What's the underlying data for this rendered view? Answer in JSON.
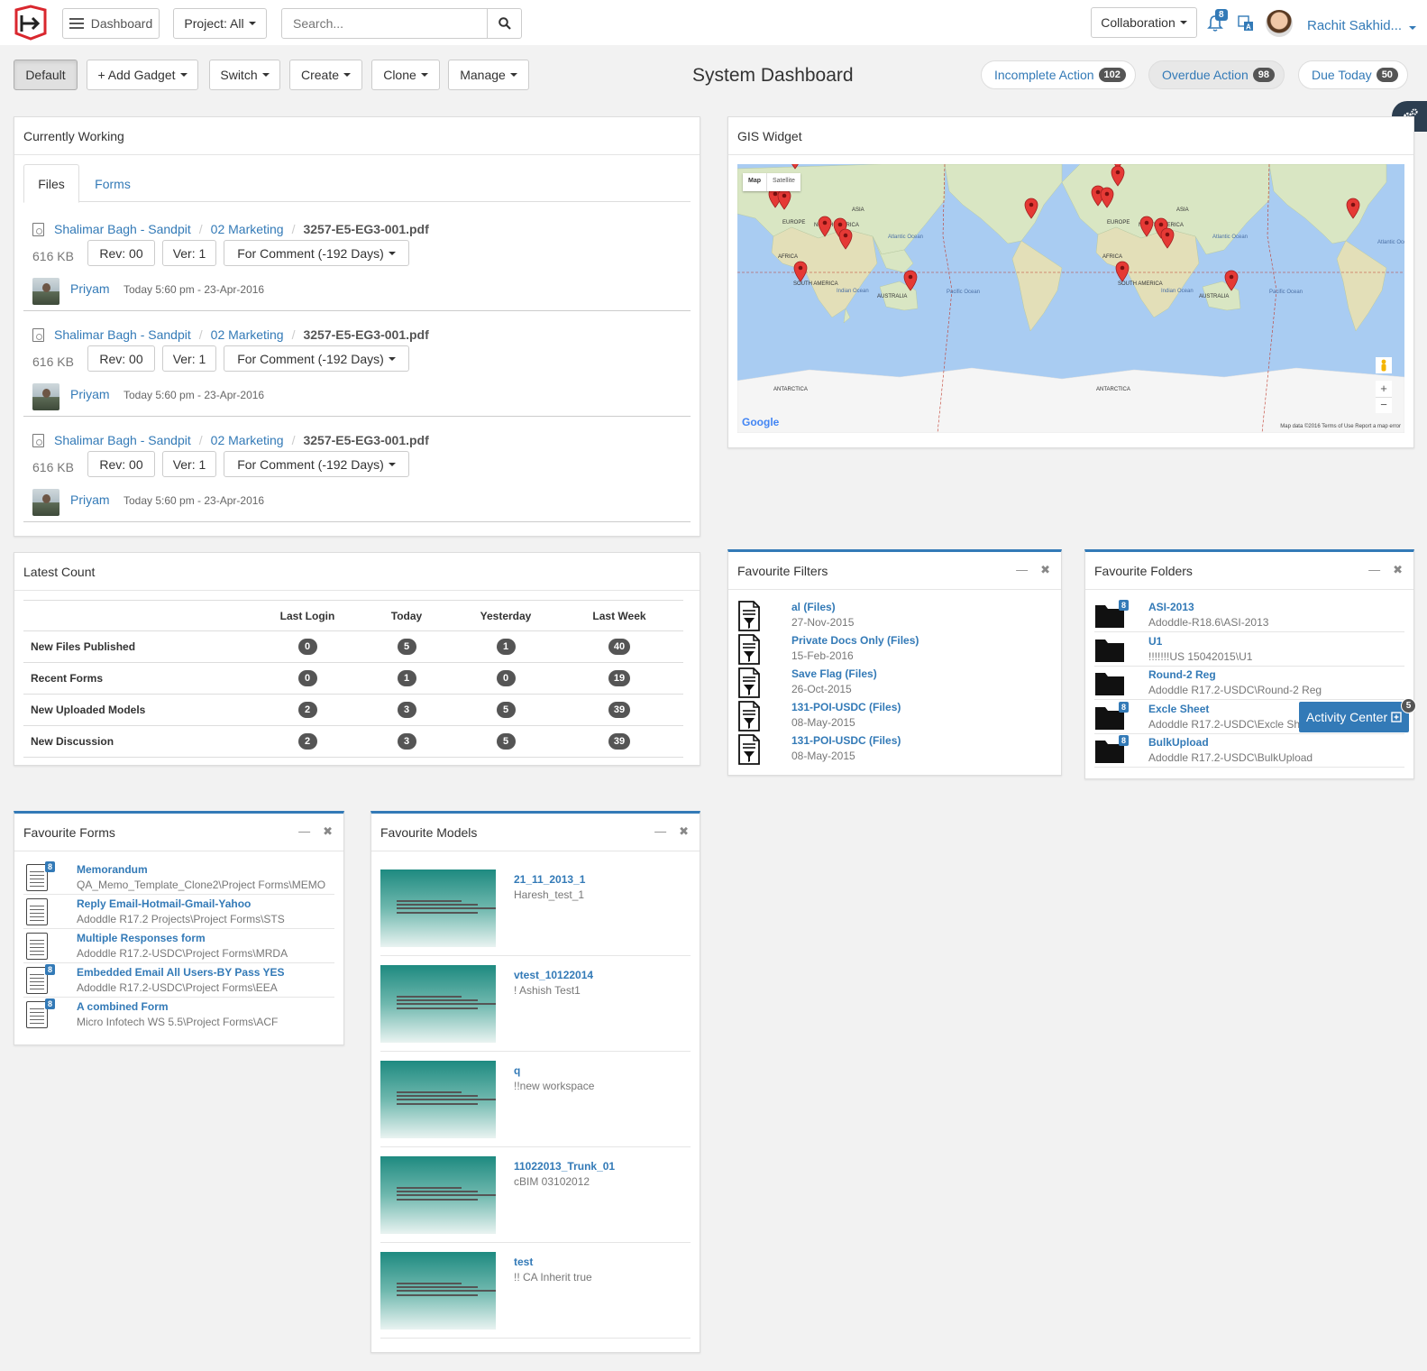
{
  "topnav": {
    "dashboard_label": "Dashboard",
    "project_label": "Project: All",
    "search_placeholder": "Search...",
    "collaboration_label": "Collaboration",
    "notification_count": "8",
    "user_name": "Rachit Sakhid..."
  },
  "toolbar": {
    "default_label": "Default",
    "add_gadget_label": "+ Add Gadget",
    "switch_label": "Switch",
    "create_label": "Create",
    "clone_label": "Clone",
    "manage_label": "Manage",
    "page_title": "System Dashboard",
    "incomplete_label": "Incomplete Action",
    "incomplete_count": "102",
    "overdue_label": "Overdue Action",
    "overdue_count": "98",
    "due_today_label": "Due Today",
    "due_today_count": "50"
  },
  "currently_working": {
    "title": "Currently Working",
    "tabs": [
      "Files",
      "Forms"
    ],
    "files": [
      {
        "project": "Shalimar Bagh - Sandpit",
        "folder": "02 Marketing",
        "name": "3257-E5-EG3-001.pdf",
        "size": "616 KB",
        "rev": "Rev: 00",
        "ver": "Ver: 1",
        "status": "For Comment (-192 Days)",
        "user": "Priyam",
        "time": "Today 5:60 pm - 23-Apr-2016"
      },
      {
        "project": "Shalimar Bagh - Sandpit",
        "folder": "02 Marketing",
        "name": "3257-E5-EG3-001.pdf",
        "size": "616 KB",
        "rev": "Rev: 00",
        "ver": "Ver: 1",
        "status": "For Comment (-192 Days)",
        "user": "Priyam",
        "time": "Today 5:60 pm - 23-Apr-2016"
      },
      {
        "project": "Shalimar Bagh - Sandpit",
        "folder": "02 Marketing",
        "name": "3257-E5-EG3-001.pdf",
        "size": "616 KB",
        "rev": "Rev: 00",
        "ver": "Ver: 1",
        "status": "For Comment (-192 Days)",
        "user": "Priyam",
        "time": "Today 5:60 pm - 23-Apr-2016"
      }
    ]
  },
  "gis": {
    "title": "GIS Widget",
    "map_tab": "Map",
    "satellite_tab": "Satellite",
    "google_label": "Google",
    "attribution": "Map data ©2016   Terms of Use   Report a map error",
    "labels": [
      "EUROPE",
      "ASIA",
      "AFRICA",
      "AUSTRALIA",
      "NORTH AMERICA",
      "SOUTH AMERICA",
      "ANTARCTICA",
      "Indian Ocean",
      "Pacific Ocean",
      "Atlantic Ocean",
      "EUROPE",
      "ASIA",
      "AFRICA",
      "AUSTRALIA",
      "NORTH AMERICA",
      "SOUTH AMERICA",
      "ANTARCTICA",
      "Indian Ocean",
      "Pacific Ocean",
      "Atlantic Ocean",
      "Atlantic Ocean"
    ],
    "zoom_in": "+",
    "zoom_out": "−"
  },
  "latest_count": {
    "title": "Latest Count",
    "columns": [
      "",
      "Last Login",
      "Today",
      "Yesterday",
      "Last Week"
    ],
    "rows": [
      {
        "label": "New Files Published",
        "values": [
          "0",
          "5",
          "1",
          "40"
        ]
      },
      {
        "label": "Recent Forms",
        "values": [
          "0",
          "1",
          "0",
          "19"
        ]
      },
      {
        "label": "New Uploaded Models",
        "values": [
          "2",
          "3",
          "5",
          "39"
        ]
      },
      {
        "label": "New Discussion",
        "values": [
          "2",
          "3",
          "5",
          "39"
        ]
      }
    ]
  },
  "favourite_filters": {
    "title": "Favourite Filters",
    "items": [
      {
        "name": "al (Files)",
        "date": "27-Nov-2015"
      },
      {
        "name": "Private Docs Only (Files)",
        "date": "15-Feb-2016"
      },
      {
        "name": "Save Flag (Files)",
        "date": "26-Oct-2015"
      },
      {
        "name": "131-POI-USDC (Files)",
        "date": "08-May-2015"
      },
      {
        "name": "131-POI-USDC (Files)",
        "date": "08-May-2015"
      }
    ]
  },
  "favourite_folders": {
    "title": "Favourite Folders",
    "items": [
      {
        "name": "ASI-2013",
        "path": "Adoddle-R18.6\\ASI-2013",
        "badge": "8"
      },
      {
        "name": "U1",
        "path": "!!!!!!!US 15042015\\U1",
        "badge": ""
      },
      {
        "name": "Round-2 Reg",
        "path": "Adoddle R17.2-USDC\\Round-2 Reg",
        "badge": ""
      },
      {
        "name": "Excle Sheet",
        "path": "Adoddle R17.2-USDC\\Excle Sheet",
        "badge": "8"
      },
      {
        "name": "BulkUpload",
        "path": "Adoddle R17.2-USDC\\BulkUpload",
        "badge": "8"
      }
    ]
  },
  "activity_center": {
    "label": "Activity Center",
    "count": "5"
  },
  "favourite_forms": {
    "title": "Favourite Forms",
    "items": [
      {
        "name": "Memorandum",
        "path": "QA_Memo_Template_Clone2\\Project Forms\\MEMO",
        "badge": "8"
      },
      {
        "name": "Reply Email-Hotmail-Gmail-Yahoo",
        "path": "Adoddle R17.2 Projects\\Project Forms\\STS",
        "badge": ""
      },
      {
        "name": "Multiple Responses form",
        "path": "Adoddle R17.2-USDC\\Project Forms\\MRDA",
        "badge": ""
      },
      {
        "name": "Embedded Email All Users-BY Pass YES",
        "path": "Adoddle R17.2-USDC\\Project Forms\\EEA",
        "badge": "8"
      },
      {
        "name": "A combined Form",
        "path": "Micro Infotech WS 5.5\\Project Forms\\ACF",
        "badge": "8"
      }
    ]
  },
  "favourite_models": {
    "title": "Favourite Models",
    "items": [
      {
        "name": "21_11_2013_1",
        "desc": "Haresh_test_1"
      },
      {
        "name": "vtest_10122014",
        "desc": "! Ashish Test1"
      },
      {
        "name": "q",
        "desc": "!!new workspace"
      },
      {
        "name": "11022013_Trunk_01",
        "desc": "cBIM 03102012"
      },
      {
        "name": "test",
        "desc": "!! CA Inherit true"
      }
    ]
  },
  "colors": {
    "accent": "#337ab7",
    "badge_dark": "#555555",
    "brand_red": "#d9272e",
    "marker_red": "#e53935"
  }
}
